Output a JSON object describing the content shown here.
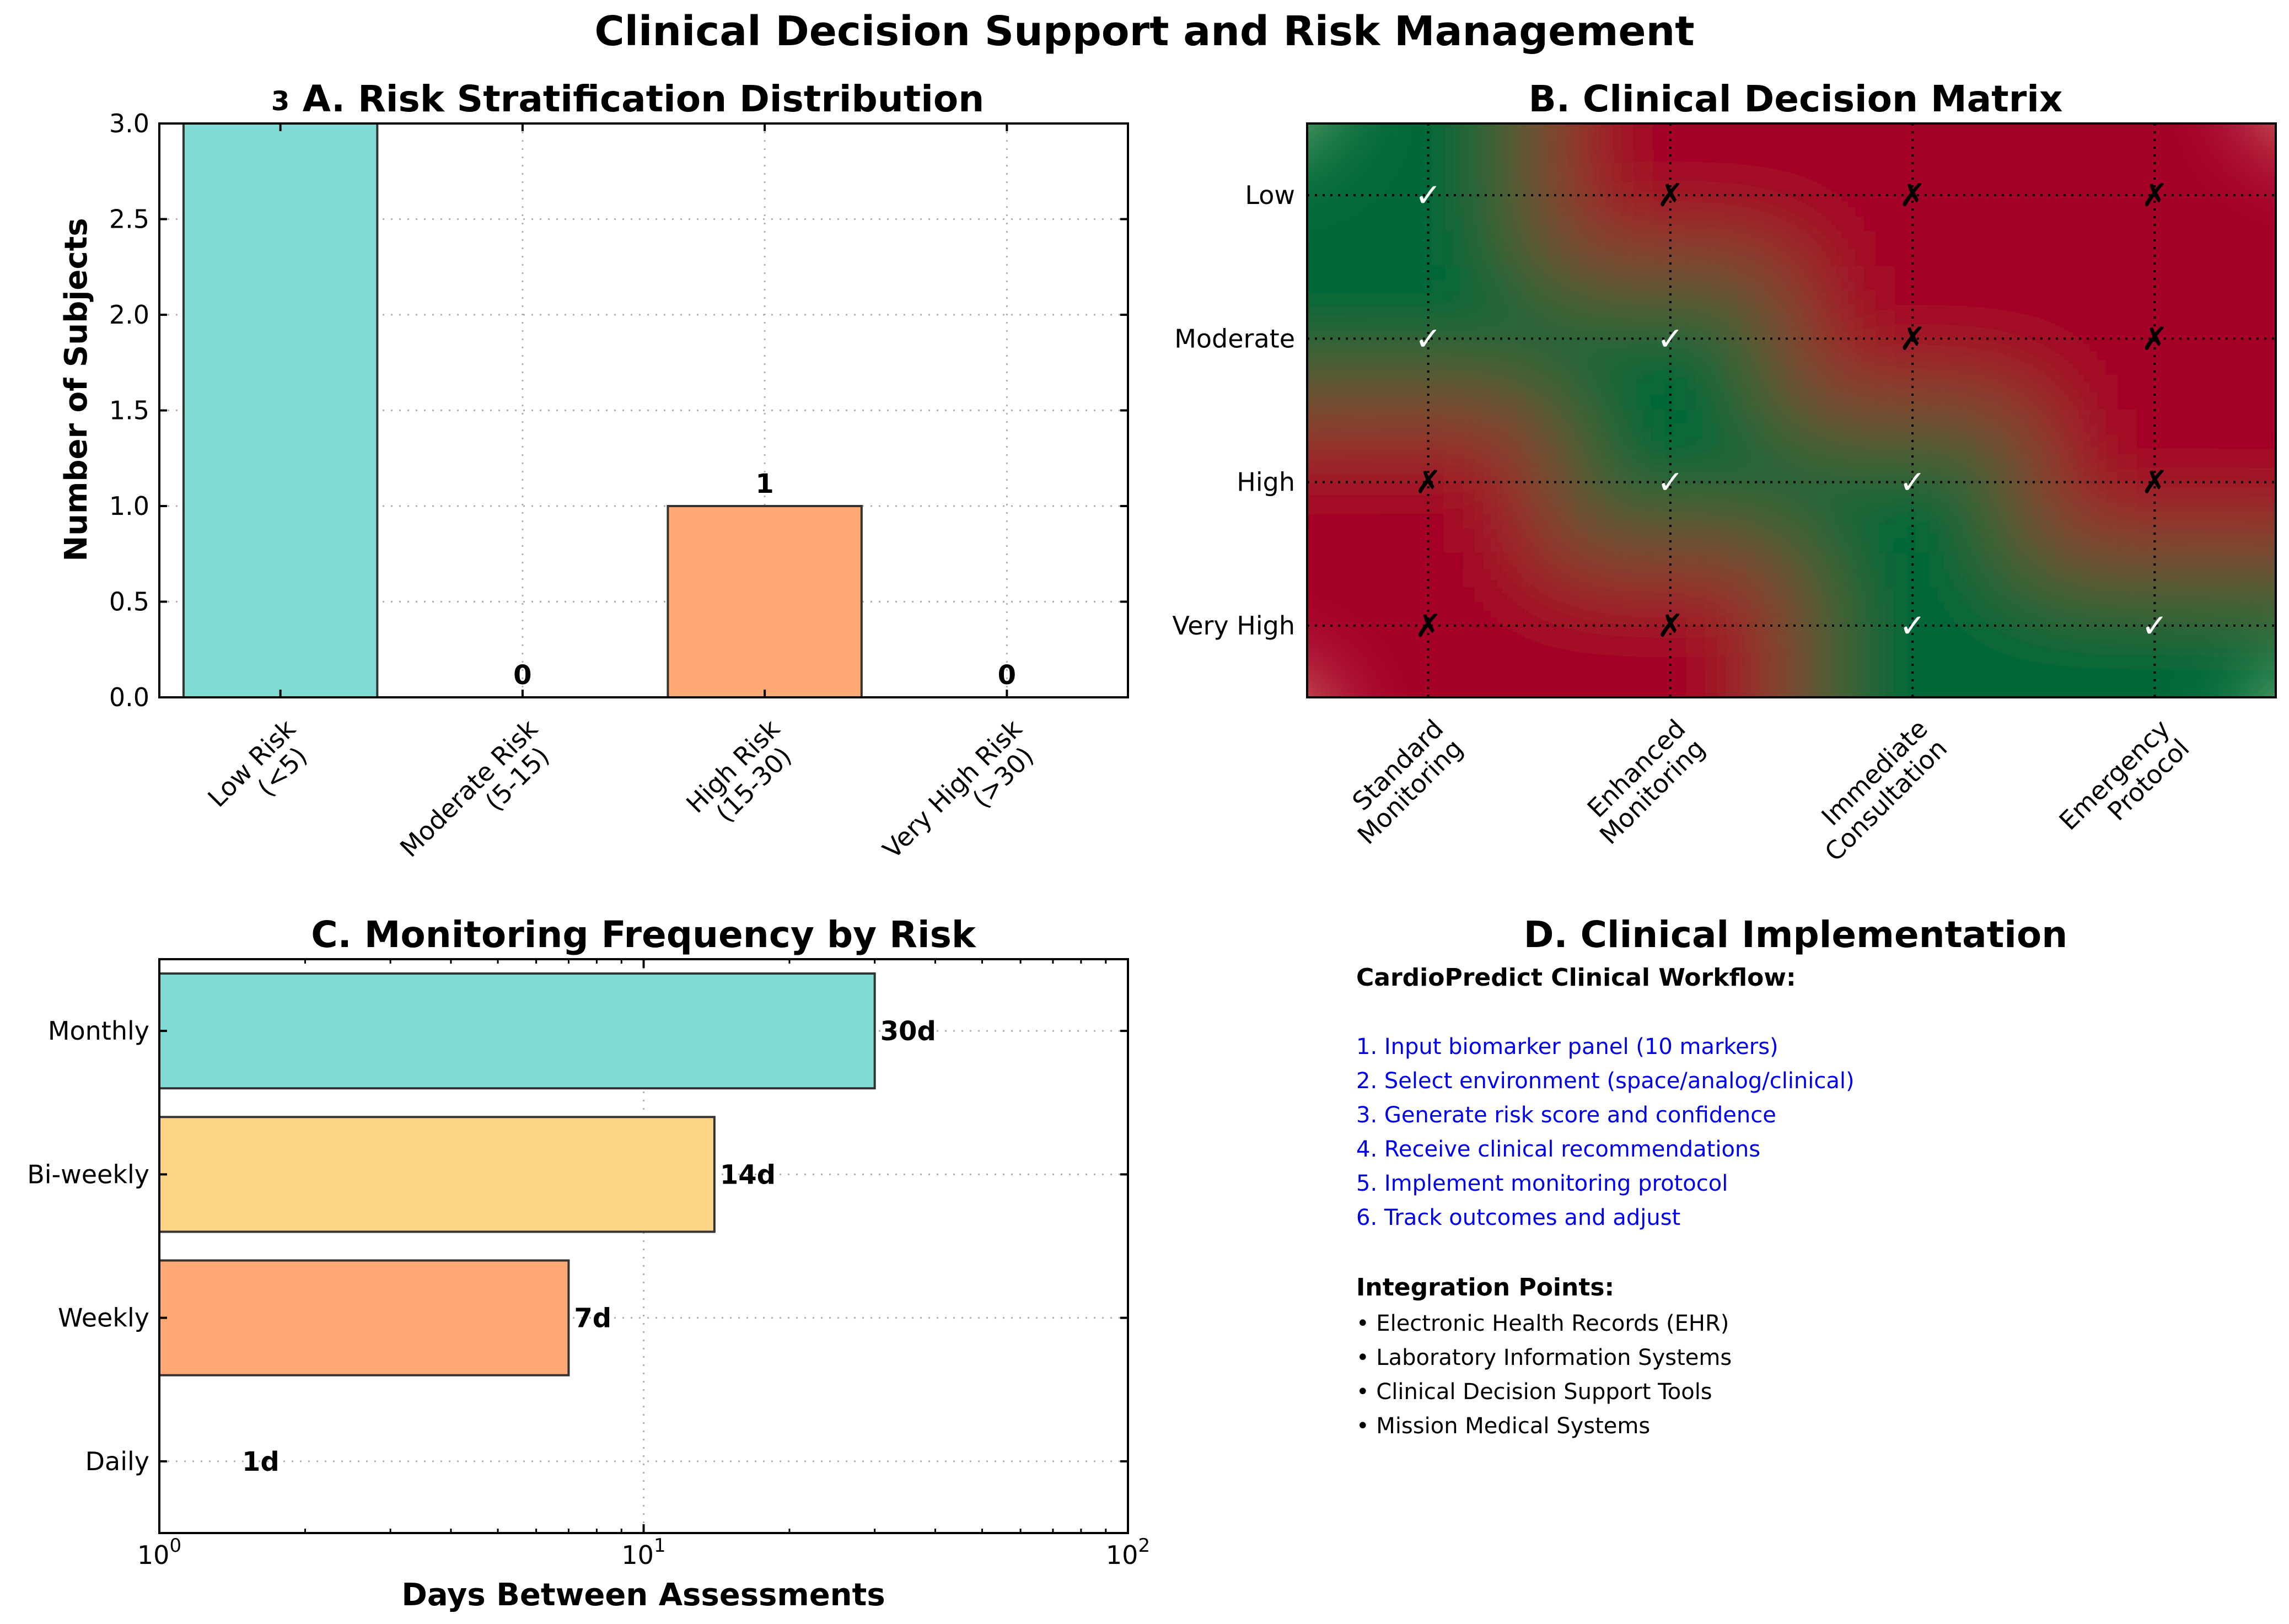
{
  "title": "Clinical Decision Support and Risk Management",
  "chart_data": [
    {
      "panel": "A",
      "type": "bar",
      "title": "A. Risk Stratification Distribution",
      "xlabel": "",
      "ylabel": "Number of Subjects",
      "categories": [
        "Low Risk\n(<5)",
        "Moderate Risk\n(5-15)",
        "High Risk\n(15-30)",
        "Very High Risk\n(>30)"
      ],
      "values": [
        3,
        0,
        1,
        0
      ],
      "colors": [
        "#80dbd4",
        "#fed485",
        "#ffa974",
        "#ff6b6b"
      ],
      "ylim": [
        0,
        3.0
      ],
      "yticks": [
        0.0,
        0.5,
        1.0,
        1.5,
        2.0,
        2.5,
        3.0
      ],
      "grid": true
    },
    {
      "panel": "B",
      "type": "heatmap",
      "title": "B. Clinical Decision Matrix",
      "rows": [
        "Low",
        "Moderate",
        "High",
        "Very High"
      ],
      "columns": [
        "Standard\nMonitoring",
        "Enhanced\nMonitoring",
        "Immediate\nConsultation",
        "Emergency\nProtocol"
      ],
      "values": [
        [
          1,
          0,
          0,
          0
        ],
        [
          1,
          1,
          0,
          0
        ],
        [
          0,
          1,
          1,
          0
        ],
        [
          0,
          0,
          1,
          1
        ]
      ],
      "check_symbol": "✓",
      "cross_symbol": "✗",
      "colormap": "RdYlGn",
      "interpolated": true
    },
    {
      "panel": "C",
      "type": "bar",
      "orientation": "horizontal",
      "title": "C. Monitoring Frequency by Risk",
      "xlabel": "Days Between Assessments",
      "ylabel": "",
      "categories": [
        "Monthly",
        "Bi-weekly",
        "Weekly",
        "Daily"
      ],
      "values": [
        30,
        14,
        7,
        1
      ],
      "value_labels": [
        "30d",
        "14d",
        "7d",
        "1d"
      ],
      "colors": [
        "#80dbd4",
        "#fed485",
        "#ffa974",
        "#ff6b6b"
      ],
      "x_scale": "log",
      "xlim": [
        1,
        100
      ],
      "xtick_labels": [
        {
          "base": "10",
          "exp": "0"
        },
        {
          "base": "10",
          "exp": "1"
        },
        {
          "base": "10",
          "exp": "2"
        }
      ],
      "grid": true
    }
  ],
  "panel_d": {
    "title": "D. Clinical Implementation",
    "heading": "CardioPredict Clinical Workflow:",
    "steps": [
      "1. Input biomarker panel (10 markers)",
      "2. Select environment (space/analog/clinical)",
      "3. Generate risk score and confidence",
      "4. Receive clinical recommendations",
      "5. Implement monitoring protocol",
      "6. Track outcomes and adjust"
    ],
    "integration_heading": "Integration Points:",
    "integration_items": [
      "• Electronic Health Records (EHR)",
      "• Laboratory Information Systems",
      "• Clinical Decision Support Tools",
      "• Mission Medical Systems"
    ],
    "step_color": "#0000ee"
  }
}
